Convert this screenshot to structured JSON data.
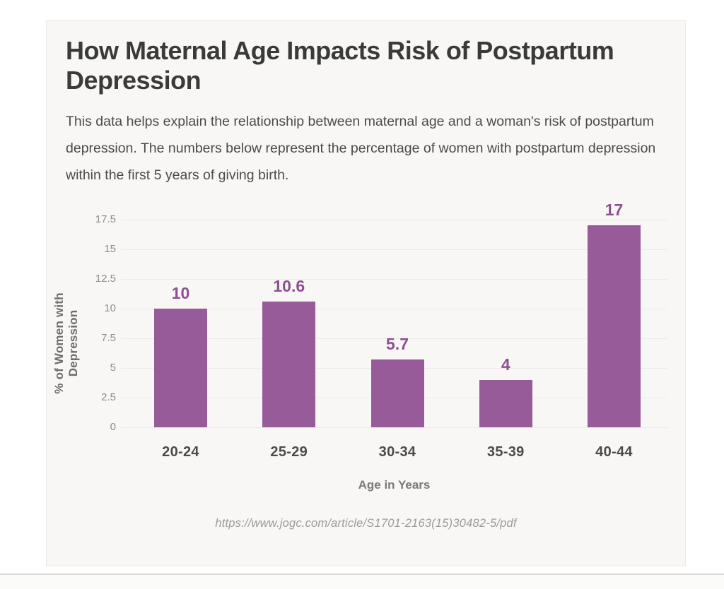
{
  "page": {
    "title": "How Maternal Age Impacts Risk of Postpartum Depression",
    "description": "This data helps explain the relationship between maternal age and a woman's risk of postpartum depression. The numbers below represent the percentage of women with postpartum depression within the first 5 years of giving birth.",
    "source_url": "https://www.jogc.com/article/S1701-2163(15)30482-5/pdf"
  },
  "chart_data": {
    "type": "bar",
    "title": "How Maternal Age Impacts Risk of Postpartum Depression",
    "categories": [
      "20-24",
      "25-29",
      "30-34",
      "35-39",
      "40-44"
    ],
    "values": [
      10,
      10.6,
      5.7,
      4,
      17
    ],
    "value_labels": [
      "10",
      "10.6",
      "5.7",
      "4",
      "17"
    ],
    "xlabel": "Age in Years",
    "ylabel": "% of Women with Depression",
    "ylim": [
      0,
      17.5
    ],
    "yticks": [
      17.5,
      15,
      12.5,
      10,
      7.5,
      5,
      2.5,
      0
    ],
    "ytick_labels": [
      "17.5",
      "15",
      "12.5",
      "10",
      "7.5",
      "5",
      "2.5",
      "0"
    ],
    "grid": true,
    "legend": "none",
    "bar_color": "#975b9a",
    "value_label_color": "#8d4e93"
  }
}
